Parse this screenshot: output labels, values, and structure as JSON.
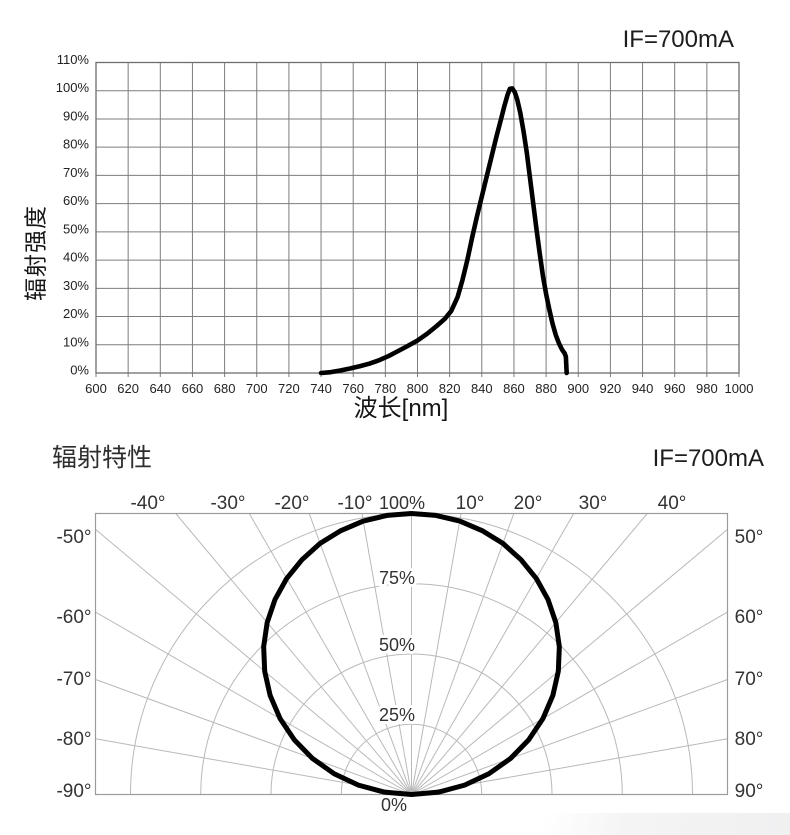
{
  "page": {
    "background": "#ffffff",
    "text_color": "#1d1d1d"
  },
  "chart_data": [
    {
      "type": "line",
      "title": "IF=700mA",
      "xlabel": "波长[nm]",
      "ylabel": "辐射强度",
      "xlim": [
        600,
        1000
      ],
      "ylim": [
        0,
        110
      ],
      "grid": true,
      "grid_color": "#7d7d7d",
      "x_ticks": [
        600,
        620,
        640,
        660,
        680,
        700,
        720,
        740,
        760,
        780,
        800,
        820,
        840,
        860,
        880,
        900,
        920,
        940,
        960,
        980,
        1000
      ],
      "y_ticks": [
        0,
        10,
        20,
        30,
        40,
        50,
        60,
        70,
        80,
        90,
        100,
        110
      ],
      "y_tick_labels": [
        "0%",
        "10%",
        "20%",
        "30%",
        "40%",
        "50%",
        "60%",
        "70%",
        "80%",
        "90%",
        "100%",
        "110%"
      ],
      "series": [
        {
          "name": "relative-radiant-intensity-spectrum",
          "color": "#000000",
          "peak_wavelength_nm": 858,
          "points": [
            [
              740,
              0
            ],
            [
              746,
              0.3
            ],
            [
              752,
              0.9
            ],
            [
              758,
              1.6
            ],
            [
              764,
              2.4
            ],
            [
              770,
              3.3
            ],
            [
              776,
              4.5
            ],
            [
              782,
              6
            ],
            [
              788,
              7.8
            ],
            [
              794,
              9.6
            ],
            [
              800,
              11.5
            ],
            [
              806,
              13.9
            ],
            [
              812,
              16.7
            ],
            [
              817,
              19.2
            ],
            [
              821,
              22
            ],
            [
              825,
              27
            ],
            [
              828,
              33
            ],
            [
              831,
              40
            ],
            [
              834,
              48
            ],
            [
              837,
              55.5
            ],
            [
              840,
              62.5
            ],
            [
              843,
              69.5
            ],
            [
              846,
              76.5
            ],
            [
              849,
              83.5
            ],
            [
              852,
              90
            ],
            [
              854,
              94.5
            ],
            [
              856,
              98.5
            ],
            [
              857.5,
              100.7
            ],
            [
              859,
              100.8
            ],
            [
              860.5,
              99.5
            ],
            [
              862,
              97
            ],
            [
              864,
              92
            ],
            [
              866,
              85.5
            ],
            [
              868,
              78
            ],
            [
              870,
              69
            ],
            [
              872,
              60
            ],
            [
              874,
              51
            ],
            [
              876,
              42.5
            ],
            [
              878,
              34.5
            ],
            [
              880,
              28
            ],
            [
              882,
              22.5
            ],
            [
              884,
              17.5
            ],
            [
              886,
              13.5
            ],
            [
              888,
              10.5
            ],
            [
              890,
              8.2
            ],
            [
              891.5,
              7
            ],
            [
              892.3,
              5.8
            ],
            [
              892.8,
              0
            ]
          ]
        }
      ]
    },
    {
      "type": "polar_half",
      "title": "IF=700mA",
      "corner_title": "辐射特性",
      "grid": true,
      "grid_color": "#b9b9b9",
      "angle_ticks_deg": [
        -90,
        -80,
        -70,
        -60,
        -50,
        -40,
        -30,
        -20,
        -10,
        0,
        10,
        20,
        30,
        40,
        50,
        60,
        70,
        80,
        90
      ],
      "top_angle_labels": [
        {
          "angle": -40,
          "label": "-40°"
        },
        {
          "angle": -30,
          "label": "-30°"
        },
        {
          "angle": -20,
          "label": "-20°"
        },
        {
          "angle": -10,
          "label": "-10°"
        },
        {
          "angle": 10,
          "label": "10°"
        },
        {
          "angle": 20,
          "label": "20°"
        },
        {
          "angle": 30,
          "label": "30°"
        },
        {
          "angle": 40,
          "label": "40°"
        }
      ],
      "side_angle_labels": [
        {
          "angle": -50,
          "label": "-50°"
        },
        {
          "angle": -60,
          "label": "-60°"
        },
        {
          "angle": -70,
          "label": "-70°"
        },
        {
          "angle": -80,
          "label": "-80°"
        },
        {
          "angle": -90,
          "label": "-90°"
        },
        {
          "angle": 50,
          "label": "50°"
        },
        {
          "angle": 60,
          "label": "60°"
        },
        {
          "angle": 70,
          "label": "70°"
        },
        {
          "angle": 80,
          "label": "80°"
        },
        {
          "angle": 90,
          "label": "90°"
        }
      ],
      "radial_ticks": [
        {
          "value": 0,
          "label": "0%"
        },
        {
          "value": 25,
          "label": "25%"
        },
        {
          "value": 50,
          "label": "50%"
        },
        {
          "value": 75,
          "label": "75%"
        },
        {
          "value": 100,
          "label": "100%"
        }
      ],
      "series": [
        {
          "name": "radiation-pattern",
          "color": "#000000",
          "points_deg_pct": [
            [
              -90,
              0
            ],
            [
              -85,
              9.7
            ],
            [
              -80,
              19.2
            ],
            [
              -75,
              28.5
            ],
            [
              -70,
              37.5
            ],
            [
              -65,
              46
            ],
            [
              -60,
              54
            ],
            [
              -55,
              61.4
            ],
            [
              -50,
              68.2
            ],
            [
              -45,
              74.4
            ],
            [
              -40,
              79.9
            ],
            [
              -35,
              84.7
            ],
            [
              -30,
              88.8
            ],
            [
              -25,
              92.2
            ],
            [
              -20,
              95.1
            ],
            [
              -15,
              97.2
            ],
            [
              -10,
              98.8
            ],
            [
              -5,
              99.7
            ],
            [
              0,
              100
            ],
            [
              5,
              99.7
            ],
            [
              10,
              98.8
            ],
            [
              15,
              97.2
            ],
            [
              20,
              95.1
            ],
            [
              25,
              92.2
            ],
            [
              30,
              88.8
            ],
            [
              35,
              84.7
            ],
            [
              40,
              79.9
            ],
            [
              45,
              74.4
            ],
            [
              50,
              68.2
            ],
            [
              55,
              61.4
            ],
            [
              60,
              54
            ],
            [
              65,
              46
            ],
            [
              70,
              37.5
            ],
            [
              75,
              28.5
            ],
            [
              80,
              19.2
            ],
            [
              85,
              9.7
            ],
            [
              90,
              0
            ]
          ]
        }
      ]
    }
  ]
}
